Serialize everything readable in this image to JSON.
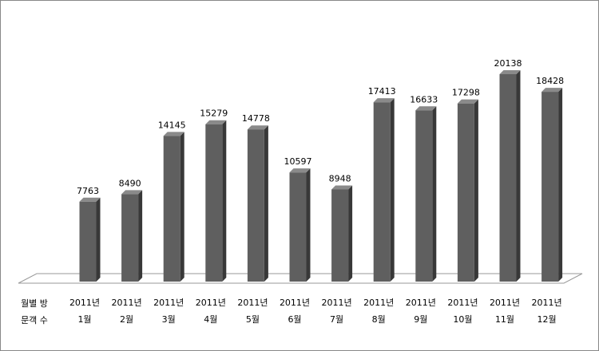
{
  "chart_data": {
    "type": "bar3d",
    "categories": [
      [
        "2011년",
        "1월"
      ],
      [
        "2011년",
        "2월"
      ],
      [
        "2011년",
        "3월"
      ],
      [
        "2011년",
        "4월"
      ],
      [
        "2011년",
        "5월"
      ],
      [
        "2011년",
        "6월"
      ],
      [
        "2011년",
        "7월"
      ],
      [
        "2011년",
        "8월"
      ],
      [
        "2011년",
        "9월"
      ],
      [
        "2011년",
        "10월"
      ],
      [
        "2011년",
        "11월"
      ],
      [
        "2011년",
        "12월"
      ]
    ],
    "series": [
      {
        "name": "월별 방문객 수",
        "color": "#5f5f5f",
        "values": [
          7763,
          8490,
          14145,
          15279,
          14778,
          10597,
          8948,
          17413,
          16633,
          17298,
          20138,
          18428
        ]
      }
    ]
  }
}
